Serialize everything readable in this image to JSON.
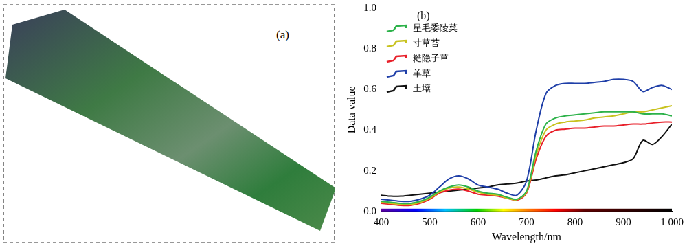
{
  "image_panel": {
    "label": "(a)"
  },
  "chart_data": {
    "type": "line",
    "title": "(b)",
    "x_label": "Wavelength/nm",
    "y_label": "Data value",
    "x": [
      400,
      420,
      440,
      460,
      480,
      500,
      520,
      540,
      560,
      580,
      600,
      620,
      640,
      660,
      680,
      700,
      720,
      740,
      760,
      780,
      800,
      820,
      840,
      860,
      880,
      900,
      920,
      940,
      960,
      980,
      1000
    ],
    "series": [
      {
        "name": "星毛委陵菜",
        "color": "#2db24a",
        "values": [
          0.05,
          0.045,
          0.04,
          0.04,
          0.05,
          0.07,
          0.1,
          0.12,
          0.13,
          0.12,
          0.1,
          0.09,
          0.085,
          0.07,
          0.06,
          0.1,
          0.3,
          0.43,
          0.46,
          0.47,
          0.475,
          0.48,
          0.485,
          0.49,
          0.49,
          0.49,
          0.49,
          0.48,
          0.48,
          0.48,
          0.47
        ]
      },
      {
        "name": "寸草苔",
        "color": "#c8c21e",
        "values": [
          0.045,
          0.04,
          0.035,
          0.035,
          0.045,
          0.065,
          0.095,
          0.115,
          0.12,
          0.11,
          0.095,
          0.085,
          0.08,
          0.065,
          0.058,
          0.095,
          0.28,
          0.4,
          0.43,
          0.44,
          0.445,
          0.45,
          0.46,
          0.465,
          0.47,
          0.48,
          0.49,
          0.49,
          0.5,
          0.51,
          0.52
        ]
      },
      {
        "name": "糙隐子草",
        "color": "#e8202a",
        "values": [
          0.04,
          0.035,
          0.03,
          0.03,
          0.04,
          0.06,
          0.09,
          0.105,
          0.11,
          0.1,
          0.085,
          0.08,
          0.075,
          0.065,
          0.055,
          0.09,
          0.26,
          0.37,
          0.4,
          0.405,
          0.41,
          0.41,
          0.415,
          0.42,
          0.42,
          0.425,
          0.43,
          0.43,
          0.435,
          0.44,
          0.44
        ]
      },
      {
        "name": "羊草",
        "color": "#1f3fa8",
        "values": [
          0.06,
          0.055,
          0.05,
          0.05,
          0.06,
          0.08,
          0.12,
          0.16,
          0.175,
          0.16,
          0.13,
          0.12,
          0.11,
          0.09,
          0.08,
          0.15,
          0.4,
          0.58,
          0.62,
          0.63,
          0.63,
          0.63,
          0.635,
          0.64,
          0.65,
          0.65,
          0.64,
          0.59,
          0.61,
          0.62,
          0.6
        ]
      },
      {
        "name": "土壤",
        "color": "#111111",
        "values": [
          0.08,
          0.075,
          0.075,
          0.08,
          0.085,
          0.09,
          0.095,
          0.1,
          0.105,
          0.11,
          0.115,
          0.12,
          0.13,
          0.135,
          0.14,
          0.15,
          0.155,
          0.165,
          0.175,
          0.18,
          0.19,
          0.2,
          0.21,
          0.22,
          0.23,
          0.24,
          0.26,
          0.35,
          0.33,
          0.37,
          0.43
        ]
      }
    ],
    "xlim": [
      400,
      1000
    ],
    "xticks": [
      400,
      500,
      600,
      700,
      800,
      900,
      {
        "value": 1000,
        "label": "1 000"
      }
    ],
    "ylim": [
      0,
      1
    ],
    "yticks": [
      {
        "value": 0,
        "label": "0.0"
      },
      0.2,
      0.4,
      0.6,
      0.8,
      {
        "value": 1,
        "label": "1.0"
      }
    ],
    "grid": false,
    "legend": "upper left"
  }
}
